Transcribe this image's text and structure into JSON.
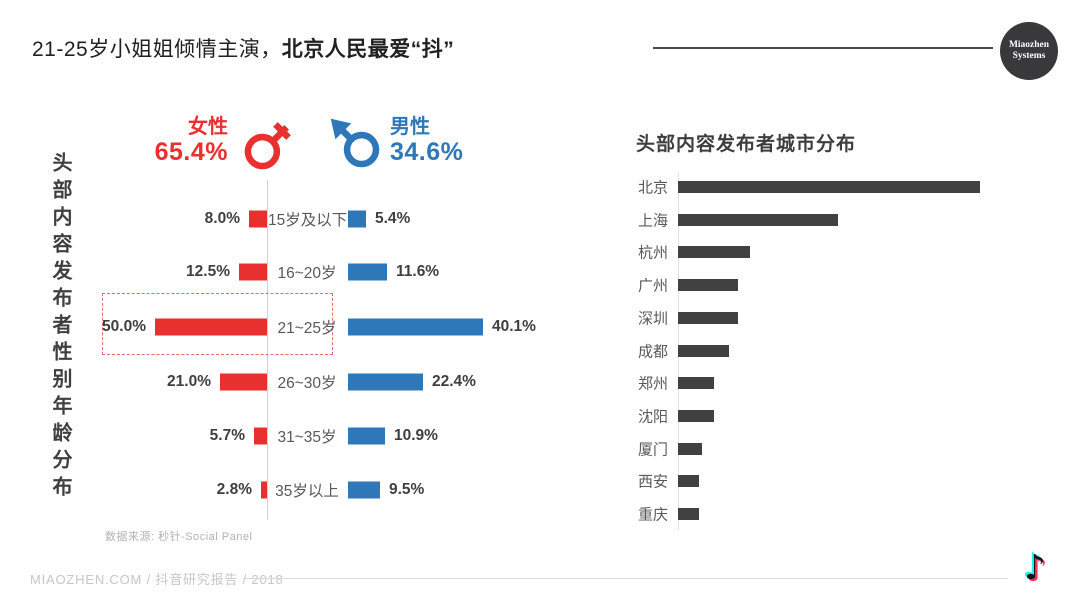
{
  "page": {
    "title": {
      "regular": "21-25岁小姐姐倾情主演，",
      "bold": "北京人民最爱“抖”"
    },
    "brand_logo": {
      "line1": "Miaozhen",
      "line2": "Systems"
    },
    "footer_text": "MIAOZHEN.COM / 抖音研究报告 / 2018",
    "source_note": "数据来源: 秒针-Social Panel",
    "colors": {
      "female_red": "#e8302e",
      "male_blue": "#2e77b8",
      "city_bar_dark": "#414141",
      "highlight_box": "#e06a6a",
      "douyin_cyan": "#2af0ea",
      "douyin_pink": "#fe2c55"
    }
  },
  "gender_header": {
    "female": {
      "label": "女性",
      "value": "65.4%"
    },
    "male": {
      "label": "男性",
      "value": "34.6%"
    }
  },
  "left_chart": {
    "side_title": "头部内容发布者性别年龄分布"
  },
  "right_chart": {
    "title": "头部内容发布者城市分布"
  },
  "icons": {
    "douyin_note": "♪"
  },
  "chart_data": [
    {
      "type": "bar",
      "subtype": "population_pyramid",
      "title": "头部内容发布者性别年龄分布",
      "categories": [
        "15岁及以下",
        "16~20岁",
        "21~25岁",
        "26~30岁",
        "31~35岁",
        "35岁以上"
      ],
      "series": [
        {
          "name": "女性",
          "total_percent": 65.4,
          "values": [
            8.0,
            12.5,
            50.0,
            21.0,
            5.7,
            2.8
          ],
          "color": "#e8302e",
          "side": "left"
        },
        {
          "name": "男性",
          "total_percent": 34.6,
          "values": [
            5.4,
            11.6,
            40.1,
            22.4,
            10.9,
            9.5
          ],
          "color": "#2e77b8",
          "side": "right"
        }
      ],
      "value_format": "percent_1dp",
      "highlighted_category": "21~25岁",
      "legend_position": "top",
      "source": "数据来源: 秒针-Social Panel"
    },
    {
      "type": "bar",
      "orientation": "horizontal",
      "title": "头部内容发布者城市分布",
      "categories": [
        "北京",
        "上海",
        "杭州",
        "广州",
        "深圳",
        "成都",
        "郑州",
        "沈阳",
        "厦门",
        "西安",
        "重庆"
      ],
      "values": [
        100,
        53,
        24,
        20,
        20,
        17,
        12,
        12,
        8,
        7,
        7
      ],
      "values_note": "bars are unlabeled in the image; values are estimated relative widths with 北京 = 100",
      "value_labels_visible": false,
      "bar_color": "#414141",
      "grid": false
    }
  ]
}
